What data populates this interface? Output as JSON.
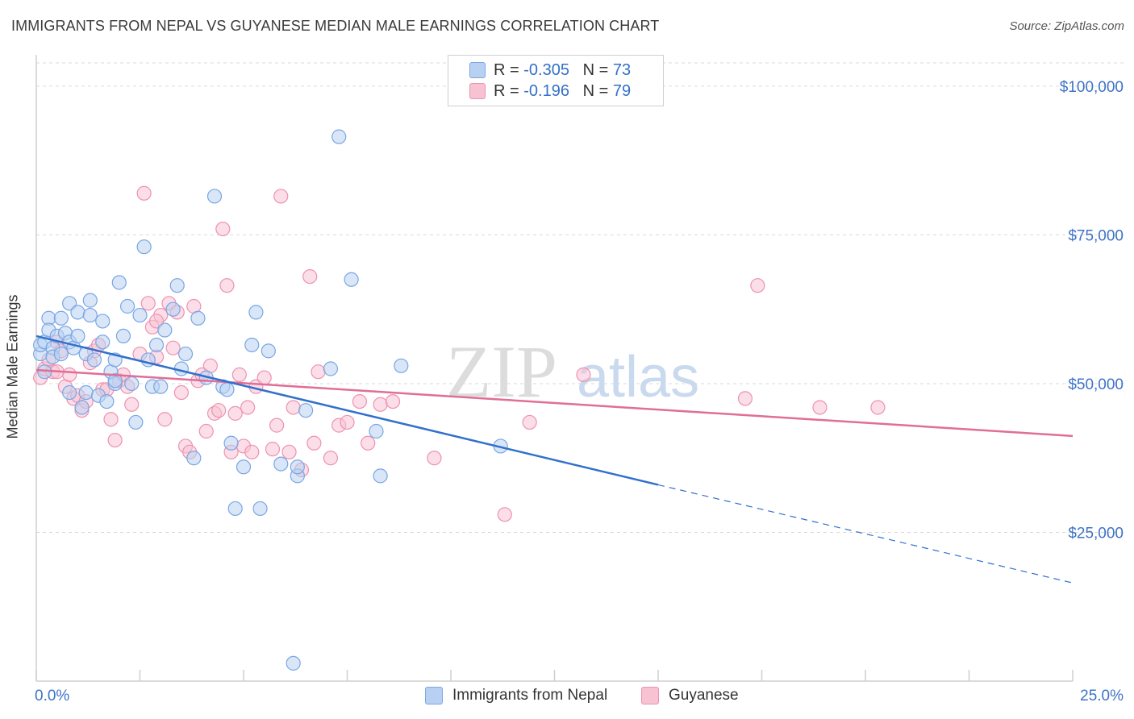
{
  "title": "IMMIGRANTS FROM NEPAL VS GUYANESE MEDIAN MALE EARNINGS CORRELATION CHART",
  "source": "Source: ZipAtlas.com",
  "watermark": {
    "zip": "ZIP",
    "atlas": "atlas"
  },
  "colors": {
    "nepal_fill": "#b8d1f3",
    "nepal_stroke": "#7aa6e3",
    "nepal_line": "#3170cc",
    "guy_fill": "#f7c3d3",
    "guy_stroke": "#ee92b0",
    "guy_line": "#e06e97",
    "axis_label": "#3f73c7",
    "grid": "#d9d9d9"
  },
  "legend": {
    "nepal": {
      "r_label": "R =",
      "r_value": "-0.305",
      "n_label": "N =",
      "n_value": "73"
    },
    "guyanese": {
      "r_label": "R =",
      "r_value": "-0.196",
      "n_label": "N =",
      "n_value": "79"
    }
  },
  "chart_data": {
    "type": "scatter",
    "title": "IMMIGRANTS FROM NEPAL VS GUYANESE MEDIAN MALE EARNINGS CORRELATION CHART",
    "xlabel": "",
    "ylabel": "Median Male Earnings",
    "xlim": [
      0,
      25
    ],
    "ylim": [
      0,
      105000
    ],
    "x_tick_labels": [
      "0.0%",
      "25.0%"
    ],
    "y_ticks": [
      25000,
      50000,
      75000,
      100000
    ],
    "y_tick_labels": [
      "$25,000",
      "$50,000",
      "$75,000",
      "$100,000"
    ],
    "grid": true,
    "legend_position": "top-center",
    "series": [
      {
        "name": "Immigrants from Nepal",
        "points": [
          [
            0.1,
            55000
          ],
          [
            0.1,
            56500
          ],
          [
            0.2,
            52000
          ],
          [
            0.2,
            57000
          ],
          [
            0.3,
            61000
          ],
          [
            0.3,
            59000
          ],
          [
            0.4,
            56000
          ],
          [
            0.4,
            54500
          ],
          [
            0.5,
            58000
          ],
          [
            0.6,
            61000
          ],
          [
            0.6,
            55000
          ],
          [
            0.7,
            58500
          ],
          [
            0.8,
            63500
          ],
          [
            0.8,
            57000
          ],
          [
            0.9,
            56000
          ],
          [
            1.0,
            62000
          ],
          [
            1.0,
            58000
          ],
          [
            1.1,
            46000
          ],
          [
            1.2,
            48500
          ],
          [
            1.2,
            55000
          ],
          [
            1.3,
            64000
          ],
          [
            1.3,
            61500
          ],
          [
            1.4,
            54000
          ],
          [
            1.5,
            48000
          ],
          [
            1.6,
            60500
          ],
          [
            1.6,
            57000
          ],
          [
            1.7,
            47000
          ],
          [
            1.8,
            52000
          ],
          [
            1.9,
            50000
          ],
          [
            1.9,
            54000
          ],
          [
            2.0,
            67000
          ],
          [
            2.1,
            58000
          ],
          [
            2.2,
            63000
          ],
          [
            2.3,
            50000
          ],
          [
            2.4,
            43500
          ],
          [
            2.5,
            61500
          ],
          [
            2.6,
            73000
          ],
          [
            2.7,
            54000
          ],
          [
            2.8,
            49500
          ],
          [
            2.9,
            56500
          ],
          [
            3.0,
            49500
          ],
          [
            3.1,
            59000
          ],
          [
            3.3,
            62500
          ],
          [
            3.4,
            66500
          ],
          [
            3.5,
            52500
          ],
          [
            3.6,
            55000
          ],
          [
            3.8,
            37500
          ],
          [
            3.9,
            61000
          ],
          [
            4.1,
            51000
          ],
          [
            4.3,
            81500
          ],
          [
            4.5,
            49500
          ],
          [
            4.6,
            49000
          ],
          [
            4.7,
            40000
          ],
          [
            4.8,
            29000
          ],
          [
            5.0,
            36000
          ],
          [
            5.2,
            56500
          ],
          [
            5.3,
            62000
          ],
          [
            5.4,
            29000
          ],
          [
            5.6,
            55500
          ],
          [
            5.9,
            36500
          ],
          [
            6.2,
            3000
          ],
          [
            6.3,
            34500
          ],
          [
            6.3,
            36000
          ],
          [
            6.5,
            45500
          ],
          [
            7.1,
            52500
          ],
          [
            7.6,
            67500
          ],
          [
            7.3,
            91500
          ],
          [
            8.2,
            42000
          ],
          [
            8.3,
            34500
          ],
          [
            8.8,
            53000
          ],
          [
            11.2,
            39500
          ],
          [
            1.9,
            50500
          ],
          [
            0.8,
            48500
          ]
        ]
      },
      {
        "name": "Guyanese",
        "points": [
          [
            0.1,
            51000
          ],
          [
            0.2,
            52500
          ],
          [
            0.3,
            54000
          ],
          [
            0.4,
            52000
          ],
          [
            0.5,
            57000
          ],
          [
            0.6,
            55500
          ],
          [
            0.7,
            49500
          ],
          [
            0.8,
            51500
          ],
          [
            0.9,
            47500
          ],
          [
            1.0,
            48000
          ],
          [
            1.1,
            45500
          ],
          [
            1.2,
            47000
          ],
          [
            1.3,
            53500
          ],
          [
            1.4,
            55500
          ],
          [
            1.5,
            56500
          ],
          [
            1.6,
            49000
          ],
          [
            1.8,
            44000
          ],
          [
            1.9,
            40500
          ],
          [
            2.0,
            50500
          ],
          [
            2.1,
            51500
          ],
          [
            2.2,
            49500
          ],
          [
            2.3,
            46500
          ],
          [
            2.5,
            55000
          ],
          [
            2.6,
            82000
          ],
          [
            2.7,
            63500
          ],
          [
            2.8,
            59500
          ],
          [
            2.9,
            54500
          ],
          [
            3.0,
            61500
          ],
          [
            3.1,
            44000
          ],
          [
            3.2,
            63500
          ],
          [
            3.3,
            56000
          ],
          [
            3.4,
            62000
          ],
          [
            3.5,
            48500
          ],
          [
            3.6,
            39500
          ],
          [
            3.7,
            38500
          ],
          [
            3.8,
            63000
          ],
          [
            3.9,
            50500
          ],
          [
            4.0,
            51500
          ],
          [
            4.1,
            42000
          ],
          [
            4.2,
            53000
          ],
          [
            4.3,
            45000
          ],
          [
            4.4,
            45500
          ],
          [
            4.5,
            76000
          ],
          [
            4.6,
            66500
          ],
          [
            4.7,
            38500
          ],
          [
            4.8,
            45000
          ],
          [
            4.9,
            51500
          ],
          [
            5.0,
            39500
          ],
          [
            5.1,
            46000
          ],
          [
            5.2,
            38500
          ],
          [
            5.3,
            49500
          ],
          [
            5.5,
            51000
          ],
          [
            5.7,
            39000
          ],
          [
            5.8,
            43000
          ],
          [
            5.9,
            81500
          ],
          [
            6.1,
            38500
          ],
          [
            6.2,
            46000
          ],
          [
            6.4,
            35500
          ],
          [
            6.6,
            68000
          ],
          [
            6.7,
            40000
          ],
          [
            6.8,
            52000
          ],
          [
            7.1,
            37500
          ],
          [
            7.3,
            43000
          ],
          [
            7.5,
            43500
          ],
          [
            7.8,
            47000
          ],
          [
            8.0,
            40000
          ],
          [
            8.3,
            46500
          ],
          [
            8.6,
            47000
          ],
          [
            9.6,
            37500
          ],
          [
            11.3,
            28000
          ],
          [
            11.9,
            43500
          ],
          [
            13.2,
            51500
          ],
          [
            17.4,
            66500
          ],
          [
            17.1,
            47500
          ],
          [
            18.9,
            46000
          ],
          [
            20.3,
            46000
          ],
          [
            0.5,
            52000
          ],
          [
            1.7,
            49000
          ],
          [
            2.9,
            60500
          ]
        ]
      }
    ],
    "trend_lines": [
      {
        "series": "Immigrants from Nepal",
        "x0": 0,
        "y0": 58000,
        "x1": 15,
        "y1": 33000,
        "dashed_to_x": 25,
        "dashed_to_y": 16500
      },
      {
        "series": "Guyanese",
        "x0": 0,
        "y0": 52300,
        "x1": 25,
        "y1": 41200
      }
    ]
  },
  "bottom_legend": {
    "nepal_label": "Immigrants from Nepal",
    "guy_label": "Guyanese"
  }
}
